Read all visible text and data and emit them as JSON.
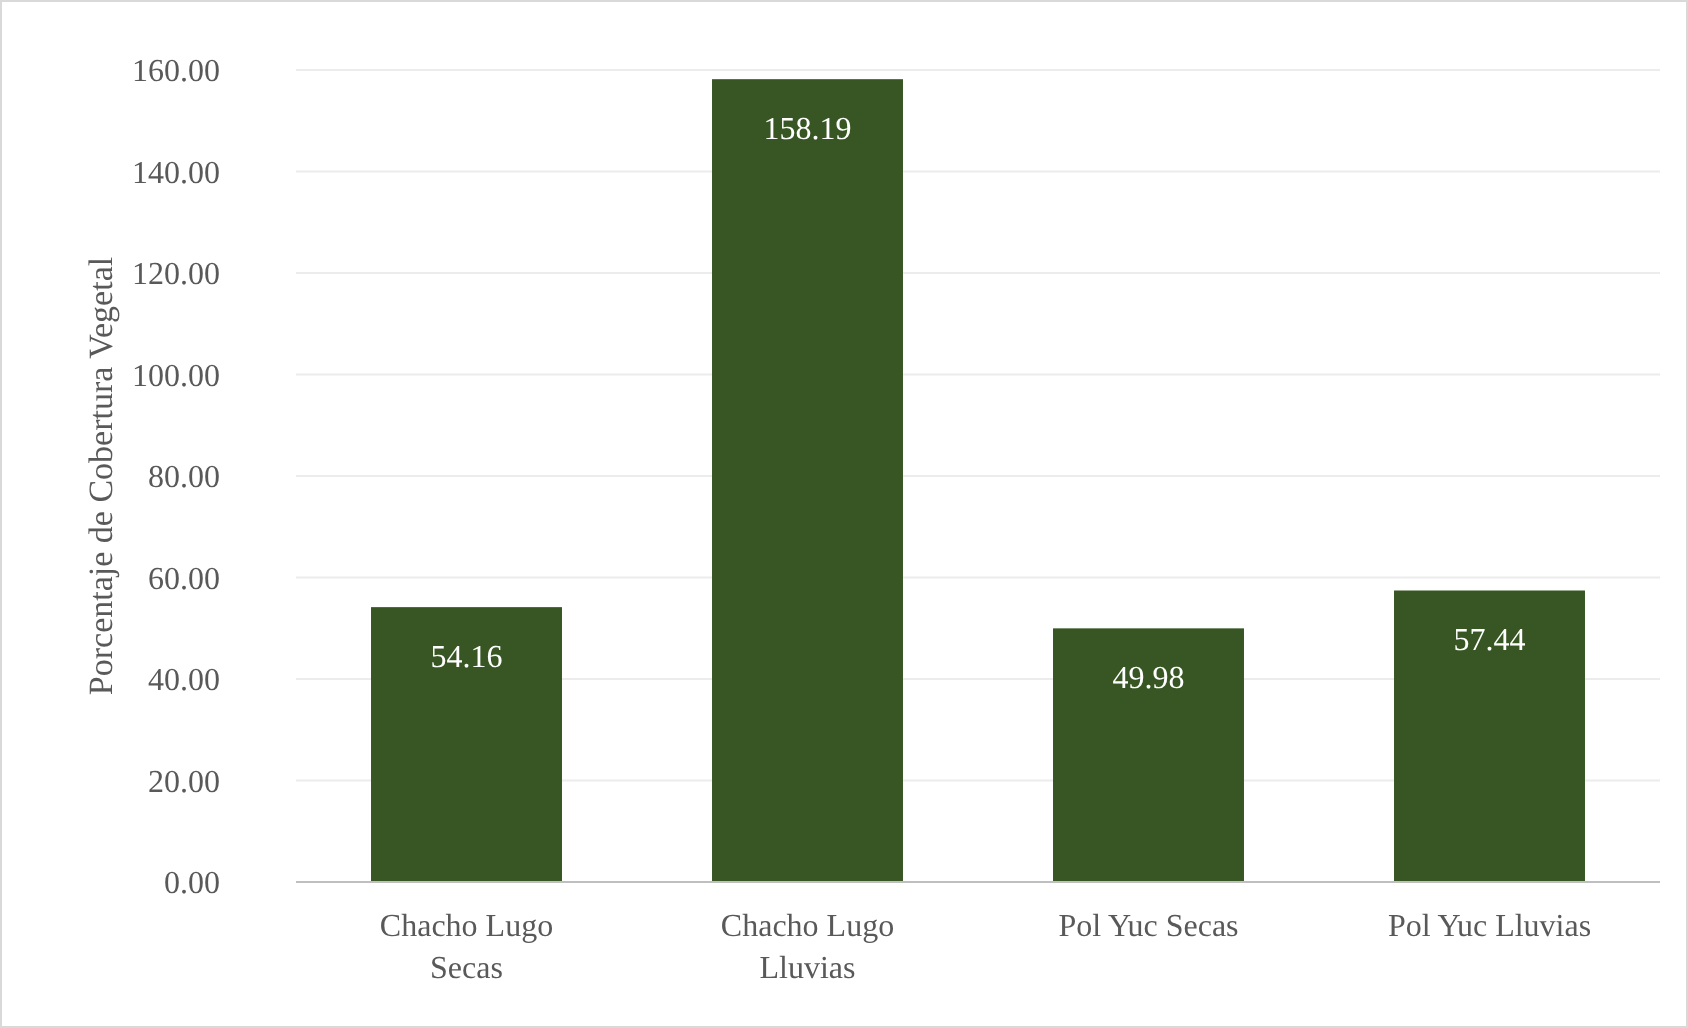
{
  "chart_data": {
    "type": "bar",
    "ylabel": "Porcentaje de Cobertura Vegetal",
    "categories": [
      "Chacho Lugo Secas",
      "Chacho Lugo Lluvias",
      "Pol Yuc Secas",
      "Pol Yuc Lluvias"
    ],
    "values": [
      54.16,
      158.19,
      49.98,
      57.44
    ],
    "color": "#375623",
    "ylim": [
      0,
      160
    ],
    "yticks": [
      {
        "value": 0,
        "label": "0.00"
      },
      {
        "value": 20,
        "label": "20.00"
      },
      {
        "value": 40,
        "label": "40.00"
      },
      {
        "value": 60,
        "label": "60.00"
      },
      {
        "value": 80,
        "label": "80.00"
      },
      {
        "value": 100,
        "label": "100.00"
      },
      {
        "value": 120,
        "label": "120.00"
      },
      {
        "value": 140,
        "label": "140.00"
      },
      {
        "value": 160,
        "label": "160.00"
      }
    ],
    "grid": "y",
    "data_labels": true
  }
}
